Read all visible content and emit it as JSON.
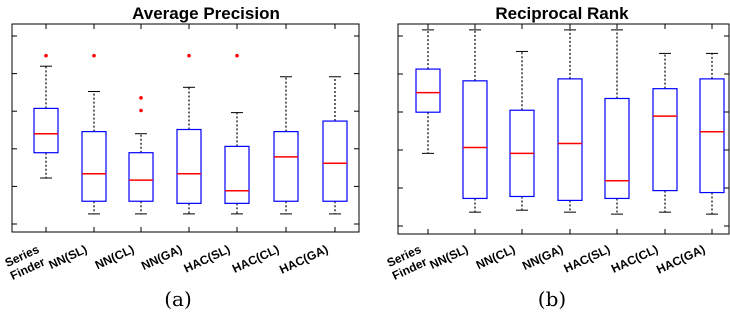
{
  "figures": [
    {
      "caption": "(a)",
      "chart_data": {
        "type": "box",
        "title": "Average Precision",
        "xlabel": "",
        "ylabel": "",
        "categories": [
          "Series\nFinder",
          "NN(SL)",
          "NN(CL)",
          "NN(GA)",
          "HAC(SL)",
          "HAC(CL)",
          "HAC(GA)"
        ],
        "ylim": [
          0,
          1
        ],
        "boxes": [
          {
            "min": 0.27,
            "q1": 0.39,
            "median": 0.48,
            "q3": 0.6,
            "max": 0.8,
            "outliers": [
              0.85
            ]
          },
          {
            "min": 0.1,
            "q1": 0.16,
            "median": 0.29,
            "q3": 0.49,
            "max": 0.68,
            "outliers": [
              0.85
            ]
          },
          {
            "min": 0.1,
            "q1": 0.16,
            "median": 0.26,
            "q3": 0.39,
            "max": 0.48,
            "outliers": [
              0.65,
              0.59
            ]
          },
          {
            "min": 0.1,
            "q1": 0.15,
            "median": 0.29,
            "q3": 0.5,
            "max": 0.7,
            "outliers": [
              0.85
            ]
          },
          {
            "min": 0.1,
            "q1": 0.15,
            "median": 0.21,
            "q3": 0.42,
            "max": 0.58,
            "outliers": [
              0.85
            ]
          },
          {
            "min": 0.1,
            "q1": 0.16,
            "median": 0.37,
            "q3": 0.49,
            "max": 0.75,
            "outliers": []
          },
          {
            "min": 0.1,
            "q1": 0.16,
            "median": 0.34,
            "q3": 0.54,
            "max": 0.75,
            "outliers": []
          }
        ],
        "grid": false
      }
    },
    {
      "caption": "(b)",
      "chart_data": {
        "type": "box",
        "title": "Reciprocal Rank",
        "xlabel": "",
        "ylabel": "",
        "categories": [
          "Series\nFinder",
          "NN(SL)",
          "NN(CL)",
          "NN(GA)",
          "HAC(SL)",
          "HAC(CL)",
          "HAC(GA)"
        ],
        "ylim": [
          0,
          1
        ],
        "boxes": [
          {
            "min": 0.34,
            "q1": 0.55,
            "median": 0.65,
            "q3": 0.77,
            "max": 0.97,
            "outliers": []
          },
          {
            "min": 0.04,
            "q1": 0.11,
            "median": 0.37,
            "q3": 0.71,
            "max": 0.97,
            "outliers": []
          },
          {
            "min": 0.05,
            "q1": 0.12,
            "median": 0.34,
            "q3": 0.56,
            "max": 0.86,
            "outliers": []
          },
          {
            "min": 0.04,
            "q1": 0.1,
            "median": 0.39,
            "q3": 0.72,
            "max": 0.97,
            "outliers": []
          },
          {
            "min": 0.03,
            "q1": 0.11,
            "median": 0.2,
            "q3": 0.62,
            "max": 0.97,
            "outliers": []
          },
          {
            "min": 0.04,
            "q1": 0.15,
            "median": 0.53,
            "q3": 0.67,
            "max": 0.85,
            "outliers": []
          },
          {
            "min": 0.03,
            "q1": 0.14,
            "median": 0.45,
            "q3": 0.72,
            "max": 0.85,
            "outliers": []
          }
        ],
        "grid": false
      }
    }
  ],
  "colors": {
    "box": "#0000ff",
    "median": "#ff0000",
    "outlier": "#ff0000",
    "whisker": "#000000",
    "axes": "#000000"
  }
}
